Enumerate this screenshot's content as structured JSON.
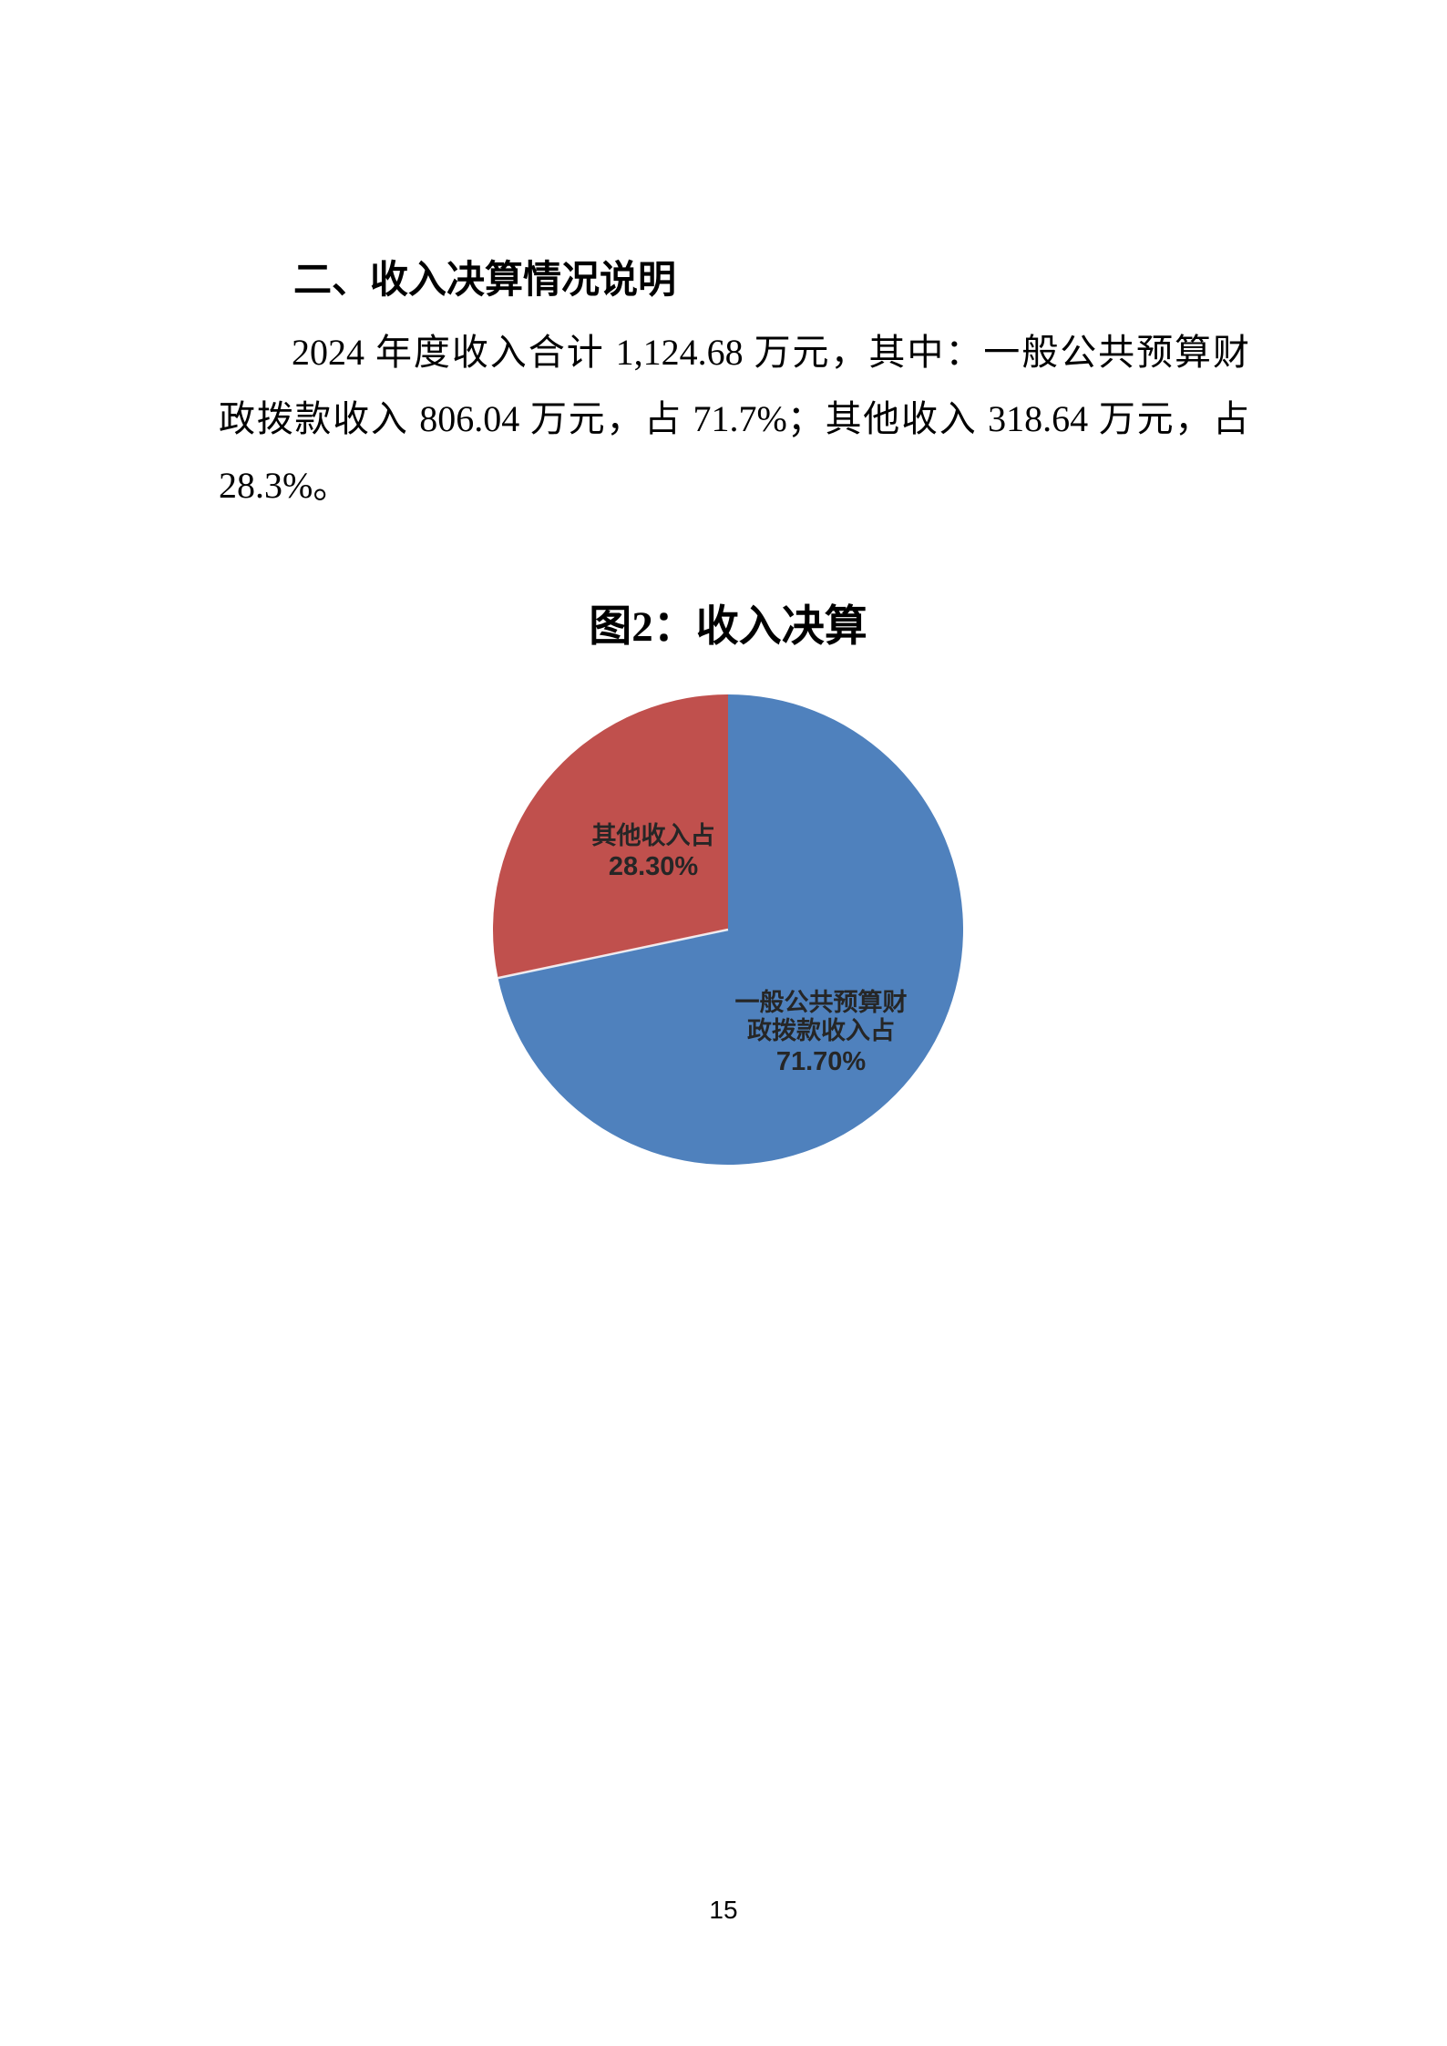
{
  "document": {
    "heading": "二、收入决算情况说明",
    "paragraph_lines": [
      "2024 年度收入合计 1,124.68 万元，其中：一般公共预算财",
      "政拨款收入 806.04 万元，占 71.7%；其他收入 318.64 万元，占",
      "28.3%。"
    ]
  },
  "chart_data": {
    "type": "pie",
    "title": "图2：收入决算",
    "start_angle_deg": 0,
    "direction": "clockwise",
    "legend": "none",
    "separator_color": "#ffffff",
    "slices": [
      {
        "name": "一般公共预算财政拨款收入占",
        "value": 71.7,
        "pct_label": "71.70%",
        "label_lines": [
          "一般公共预算财",
          "政拨款收入占"
        ],
        "color": "#4F81BD"
      },
      {
        "name": "其他收入占",
        "value": 28.3,
        "pct_label": "28.30%",
        "label_lines": [
          "其他收入占"
        ],
        "color": "#C0504D"
      }
    ]
  },
  "page": {
    "page_number": "15"
  }
}
